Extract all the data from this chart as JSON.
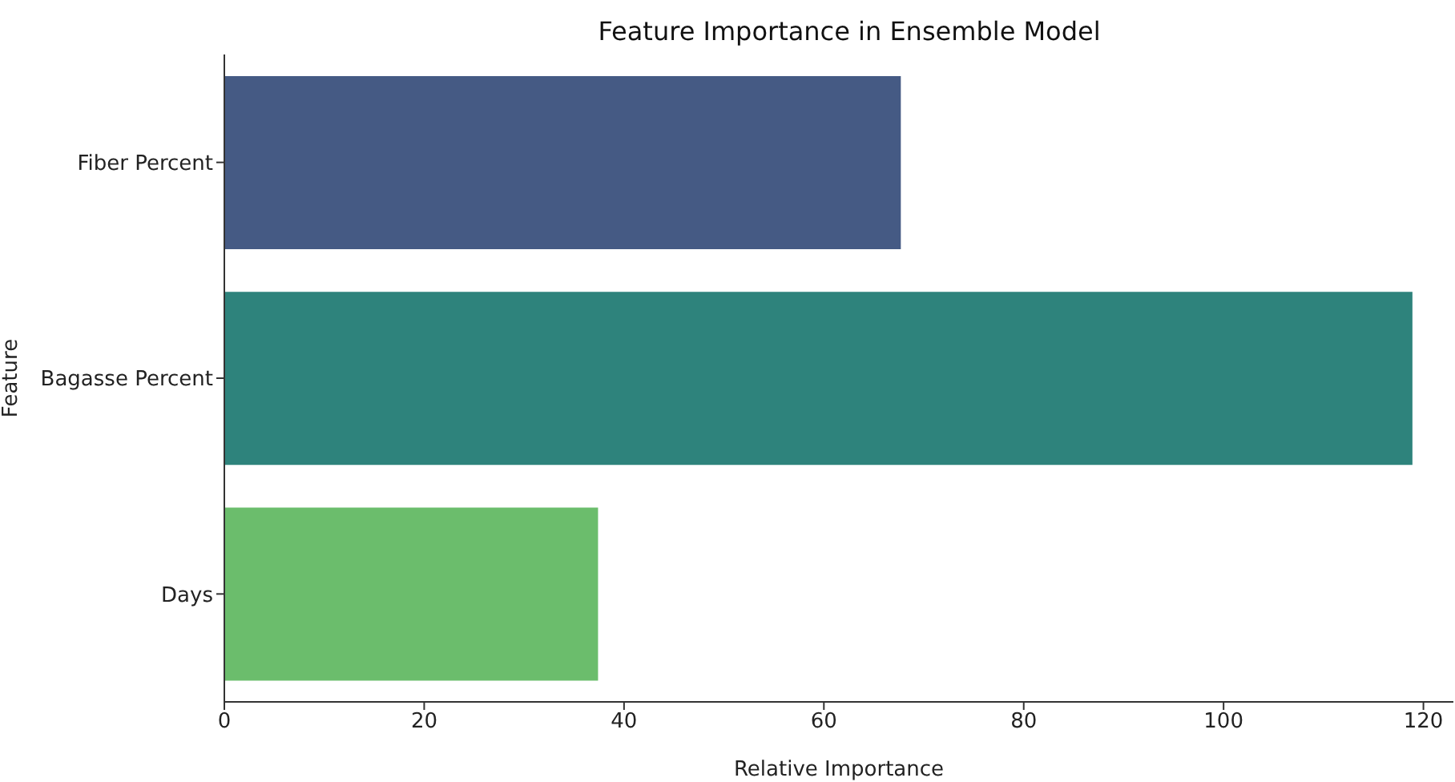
{
  "chart_data": {
    "type": "bar",
    "orientation": "horizontal",
    "title": "Feature Importance in Ensemble Model",
    "xlabel": "Relative Importance",
    "ylabel": "Feature",
    "categories": [
      "Fiber Percent",
      "Bagasse Percent",
      "Days"
    ],
    "values": [
      67.7,
      118.9,
      37.4
    ],
    "colors": [
      "#455a84",
      "#2e837c",
      "#6bbd6c"
    ],
    "xlim": [
      0,
      123
    ],
    "xticks": [
      0,
      20,
      40,
      60,
      80,
      100,
      120
    ],
    "grid": false,
    "legend": false
  }
}
